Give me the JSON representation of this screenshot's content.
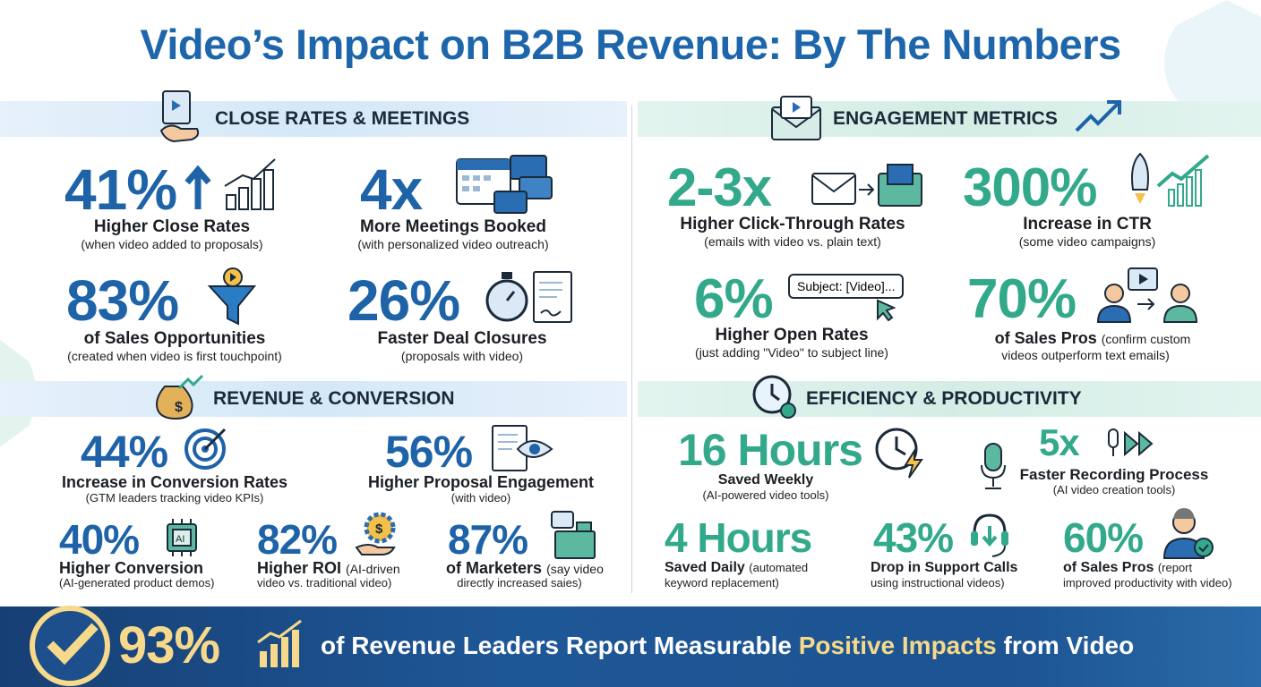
{
  "title": "Video’s Impact on B2B Revenue: By The Numbers",
  "colors": {
    "blue": "#1e63a8",
    "teal": "#33a98c",
    "banner": "#1e5796",
    "highlight": "#f6d98a"
  },
  "sections": {
    "close": {
      "title": "CLOSE RATES & MEETINGS",
      "icon": "handshake-document-icon",
      "stats": [
        {
          "value": "41%",
          "label": "Higher Close Rates",
          "note": "(when video added to proposals)",
          "icon": "arrow-up-bar-chart-icon"
        },
        {
          "value": "4x",
          "label": "More Meetings Booked",
          "note": "(with personalized video outreach)",
          "icon": "calendar-video-icon"
        },
        {
          "value": "83%",
          "label": "of Sales Opportunities",
          "note": "(created when video is first touchpoint)",
          "icon": "funnel-play-icon"
        },
        {
          "value": "26%",
          "label": "Faster Deal Closures",
          "note": "(proposals with video)",
          "icon": "stopwatch-contract-icon"
        }
      ]
    },
    "revenue": {
      "title": "REVENUE & CONVERSION",
      "icon": "money-bag-icon",
      "stats": [
        {
          "value": "44%",
          "label": "Increase in Conversion Rates",
          "note": "(GTM leaders tracking video KPIs)",
          "icon": "target-icon"
        },
        {
          "value": "56%",
          "label": "Higher Proposal Engagement",
          "note": "(with video)",
          "icon": "document-eye-icon"
        },
        {
          "value": "40%",
          "label": "Higher Conversion",
          "note": "(AI-generated product demos)",
          "icon": "ai-chip-icon"
        },
        {
          "value": "82%",
          "label": "Higher ROI",
          "note_inline": "(AI-driven",
          "note": "video vs. traditional video)",
          "icon": "gear-dollar-hand-icon"
        },
        {
          "value": "87%",
          "label": "of Marketers",
          "note_inline": "(say video",
          "note": "directly increased saies)",
          "icon": "cash-register-icon"
        }
      ]
    },
    "engagement": {
      "title": "ENGAGEMENT METRICS",
      "icon": "envelope-video-icon",
      "stats": [
        {
          "value": "2-3x",
          "label": "Higher Click-Through Rates",
          "note": "(emails with video vs. plain text)",
          "icon": "email-to-video-email-icon"
        },
        {
          "value": "300%",
          "label": "Increase in CTR",
          "note": "(some video campaigns)",
          "icon": "rocket-growth-icon"
        },
        {
          "value": "6%",
          "label": "Higher Open Rates",
          "note": "(just adding \"Video\" to subject line)",
          "subject": "Subject: [Video]...",
          "icon": "cursor-icon"
        },
        {
          "value": "70%",
          "label": "of Sales Pros",
          "note_inline": "(confirm custom",
          "note": "videos outperform text emails)",
          "icon": "people-video-icon"
        }
      ]
    },
    "efficiency": {
      "title": "EFFICIENCY & PRODUCTIVITY",
      "icon": "clock-gear-icon",
      "stats": [
        {
          "value": "16 Hours",
          "label": "Saved Weekly",
          "note": "(AI-powered video tools)",
          "icon": "clock-lightning-icon"
        },
        {
          "value": "5x",
          "label": "Faster Recording Process",
          "note": "(AI video creation tools)",
          "icon": "microphone-fast-forward-icon"
        },
        {
          "value": "4 Hours",
          "label": "Saved Daily",
          "note_inline": "(automated",
          "note": "keyword replacement)"
        },
        {
          "value": "43%",
          "label": "Drop in Support Calls",
          "note": "using instructional videos)",
          "icon": "headset-download-icon"
        },
        {
          "value": "60%",
          "label": "of Sales Pros",
          "note_inline": "(report",
          "note": "improved productivity with video)",
          "icon": "person-check-icon"
        }
      ]
    }
  },
  "banner": {
    "value": "93%",
    "text_a": "of Revenue Leaders Report Measurable ",
    "highlight": "Positive Impacts",
    "text_b": " from Video",
    "icon": "checkmark-circle-icon"
  }
}
